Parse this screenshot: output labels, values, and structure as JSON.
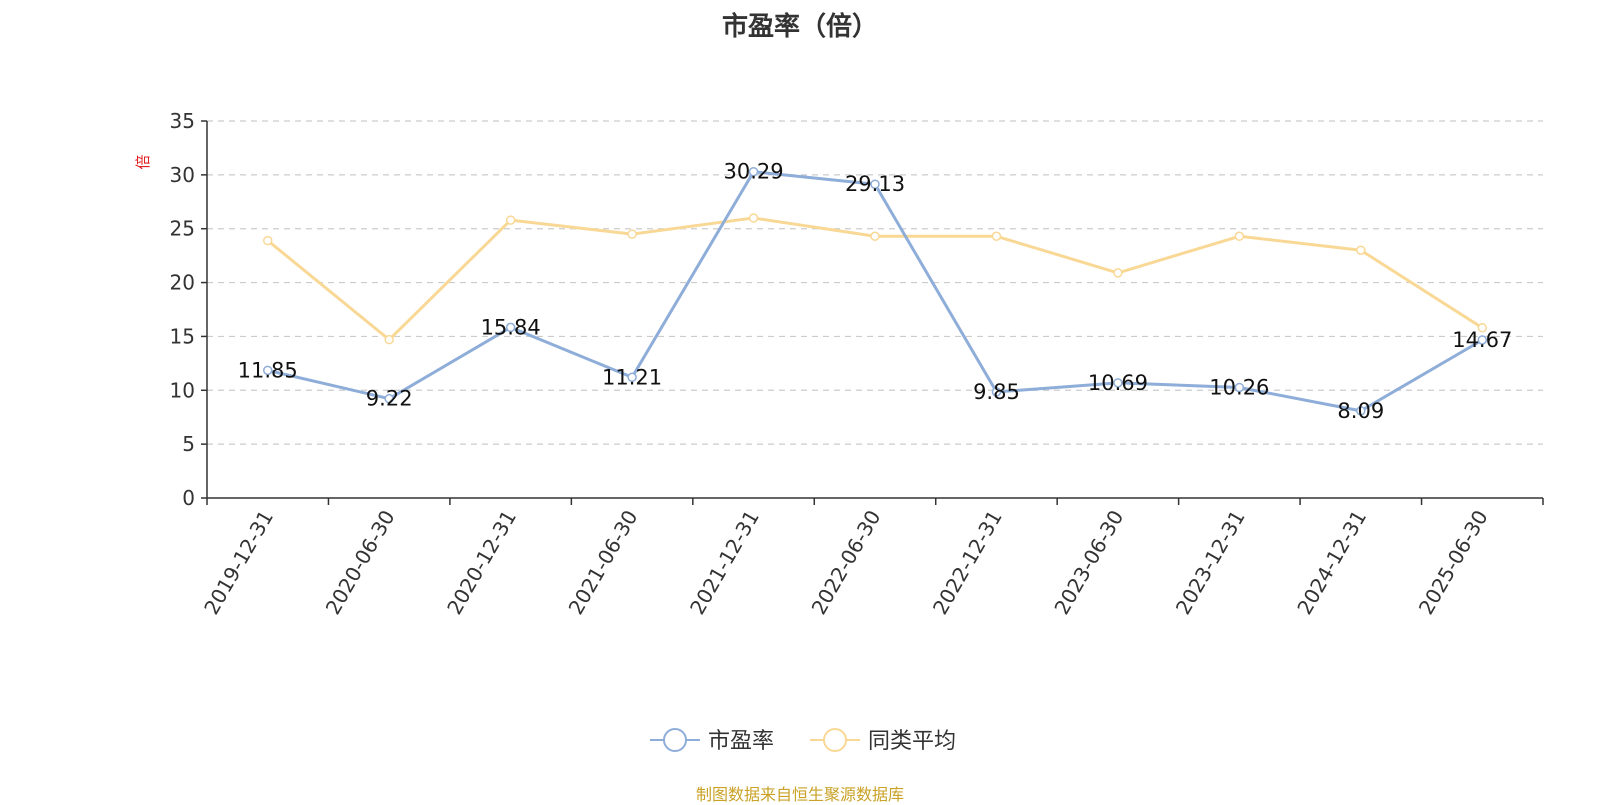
{
  "chart_data": {
    "type": "line",
    "title": "市盈率（倍）",
    "ylabel": "倍",
    "ylim": [
      0,
      35
    ],
    "yticks": [
      0,
      5,
      10,
      15,
      20,
      25,
      30,
      35
    ],
    "grid": true,
    "legend_position": "bottom",
    "categories": [
      "2019-12-31",
      "2020-06-30",
      "2020-12-31",
      "2021-06-30",
      "2021-12-31",
      "2022-06-30",
      "2022-12-31",
      "2023-06-30",
      "2023-12-31",
      "2024-12-31",
      "2025-06-30"
    ],
    "series": [
      {
        "name": "市盈率",
        "color": "#8eadd8",
        "values": [
          11.85,
          9.22,
          15.84,
          11.21,
          30.29,
          29.13,
          9.85,
          10.69,
          10.26,
          8.09,
          14.67
        ],
        "labels": [
          "11.85",
          "9.22",
          "15.84",
          "11.21",
          "30.29",
          "29.13",
          "9.85",
          "10.69",
          "10.26",
          "8.09",
          "14.67"
        ]
      },
      {
        "name": "同类平均",
        "color": "#f9d896",
        "values": [
          23.9,
          14.7,
          25.8,
          24.5,
          26.0,
          24.3,
          24.3,
          20.9,
          24.3,
          23.0,
          15.8
        ]
      }
    ]
  },
  "source_text": "制图数据来自恒生聚源数据库"
}
